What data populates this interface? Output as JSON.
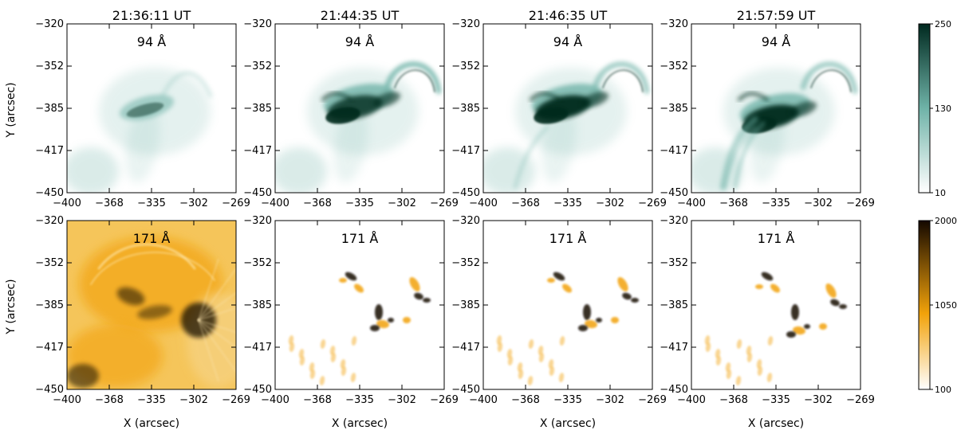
{
  "timestamps": [
    "21:36:11 UT",
    "21:44:35 UT",
    "21:46:35 UT",
    "21:57:59 UT"
  ],
  "rows": [
    {
      "wavelength_label": "94 Å",
      "colormap": {
        "low": "#ffffff",
        "mid": "#6fb3a8",
        "high": "#00291f"
      },
      "colorbar": {
        "min": "10",
        "mid": "130",
        "max": "250"
      }
    },
    {
      "wavelength_label": "171 Å",
      "colormap": {
        "low": "#ffffff",
        "mid": "#f2a20a",
        "high": "#140800"
      },
      "colorbar": {
        "min": "100",
        "mid": "1050",
        "max": "2000"
      }
    }
  ],
  "axes": {
    "xlabel": "X (arcsec)",
    "ylabel": "Y (arcsec)",
    "x_ticks": [
      "−400",
      "−368",
      "−335",
      "−302",
      "−269"
    ],
    "y_ticks": [
      "−320",
      "−352",
      "−385",
      "−417",
      "−450"
    ]
  }
}
